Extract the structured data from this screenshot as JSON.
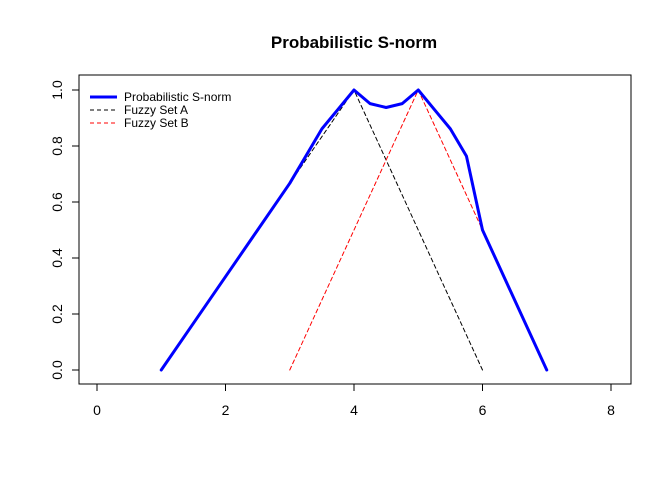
{
  "chart_data": {
    "type": "line",
    "title": "Probabilistic S-norm",
    "xlabel": "",
    "ylabel": "",
    "xlim": [
      0,
      8
    ],
    "ylim": [
      0,
      1
    ],
    "x_ticks": [
      0,
      2,
      4,
      6,
      8
    ],
    "y_ticks": [
      0.0,
      0.2,
      0.4,
      0.6,
      0.8,
      1.0
    ],
    "y_tick_labels": [
      "0.0",
      "0.2",
      "0.4",
      "0.6",
      "0.8",
      "1.0"
    ],
    "grid": false,
    "legend_position": "top-left",
    "series": [
      {
        "name": "Probabilistic S-norm",
        "color": "#0000ff",
        "style": "solid",
        "x": [
          1,
          1.5,
          2,
          2.5,
          3,
          3.25,
          3.5,
          3.75,
          4,
          4.25,
          4.5,
          4.75,
          5,
          5.25,
          5.5,
          5.75,
          6,
          6.5,
          7
        ],
        "y": [
          0,
          0.1667,
          0.3333,
          0.5,
          0.6667,
          0.7639,
          0.8611,
          0.9306,
          1.0,
          0.9514,
          0.9375,
          0.9514,
          1.0,
          0.9306,
          0.8611,
          0.7639,
          0.5,
          0.25,
          0
        ]
      },
      {
        "name": "Fuzzy Set A",
        "color": "#000000",
        "style": "dashed",
        "x": [
          1,
          4,
          6
        ],
        "y": [
          0,
          1,
          0
        ]
      },
      {
        "name": "Fuzzy Set B",
        "color": "#ff0000",
        "style": "dashed",
        "x": [
          3,
          5,
          7
        ],
        "y": [
          0,
          1,
          0
        ]
      }
    ]
  }
}
